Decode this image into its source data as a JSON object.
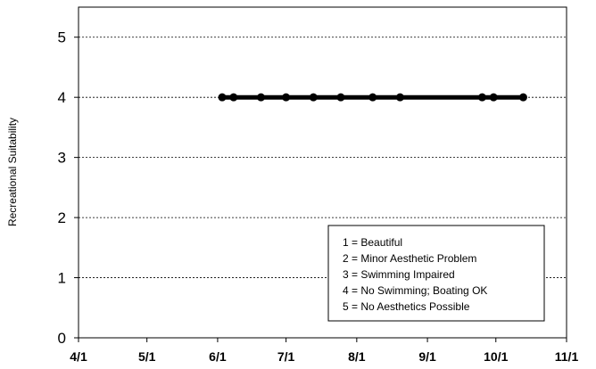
{
  "chart_data": {
    "type": "line",
    "title": "",
    "xlabel": "",
    "ylabel": "Recreational Suitability",
    "ylim": [
      0,
      5.5
    ],
    "yticks": [
      "0",
      "1",
      "2",
      "3",
      "4",
      "5"
    ],
    "xlim": [
      "2014-04-01",
      "2014-11-01"
    ],
    "xticks": [
      {
        "label": "4/1",
        "date": "2014-04-01"
      },
      {
        "label": "5/1",
        "date": "2014-05-01"
      },
      {
        "label": "6/1",
        "date": "2014-06-01"
      },
      {
        "label": "7/1",
        "date": "2014-07-01"
      },
      {
        "label": "8/1",
        "date": "2014-08-01"
      },
      {
        "label": "9/1",
        "date": "2014-09-01"
      },
      {
        "label": "10/1",
        "date": "2014-10-01"
      },
      {
        "label": "11/1",
        "date": "2014-11-01"
      }
    ],
    "grid": "horizontal dashed",
    "series": [
      {
        "points": [
          {
            "x": "2014-06-03",
            "y": 4
          },
          {
            "x": "2014-06-08",
            "y": 4
          },
          {
            "x": "2014-06-20",
            "y": 4
          },
          {
            "x": "2014-07-01",
            "y": 4
          },
          {
            "x": "2014-07-13",
            "y": 4
          },
          {
            "x": "2014-07-25",
            "y": 4
          },
          {
            "x": "2014-08-08",
            "y": 4
          },
          {
            "x": "2014-08-20",
            "y": 4
          },
          {
            "x": "2014-09-25",
            "y": 4
          },
          {
            "x": "2014-09-30",
            "y": 4
          },
          {
            "x": "2014-10-13",
            "y": 4
          }
        ],
        "color": "#000000"
      }
    ],
    "legend": {
      "placement": "bottom-right",
      "entries": [
        "1 = Beautiful",
        "2 = Minor Aesthetic Problem",
        "3 = Swimming Impaired",
        "4 = No Swimming; Boating OK",
        "5 = No Aesthetics Possible"
      ]
    }
  }
}
